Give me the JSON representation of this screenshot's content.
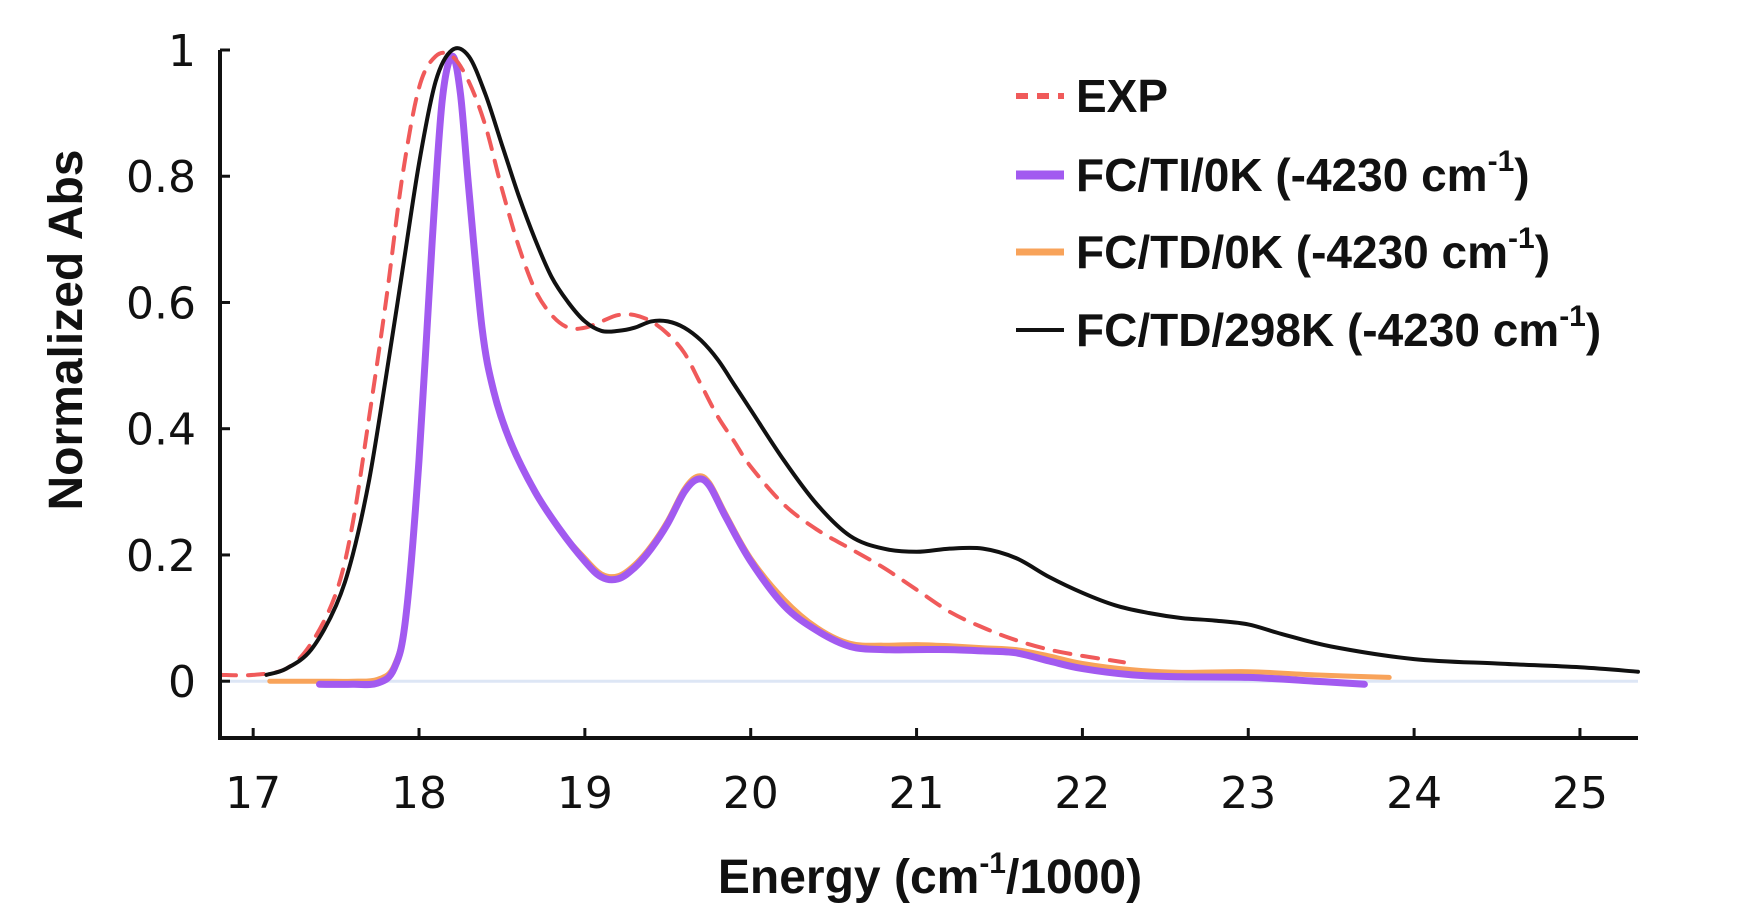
{
  "chart_data": {
    "type": "line",
    "xlabel": {
      "pre": "Energy (cm",
      "sup": "-1",
      "post": "/1000)"
    },
    "ylabel": "Normalized Abs",
    "xlim": [
      16.8,
      25.35
    ],
    "ylim": [
      -0.09,
      1.0
    ],
    "x_ticks": [
      17,
      18,
      19,
      20,
      21,
      22,
      23,
      24,
      25
    ],
    "x_tick_labels": [
      "17",
      "18",
      "19",
      "20",
      "21",
      "22",
      "23",
      "24",
      "25"
    ],
    "y_ticks": [
      0,
      0.2,
      0.4,
      0.6,
      0.8,
      1
    ],
    "y_tick_labels": [
      "0",
      "0.2",
      "0.4",
      "0.6",
      "0.8",
      "1"
    ],
    "zero_line_color": "#dde6f5",
    "legend_position": "top-right",
    "series": [
      {
        "name": "EXP",
        "legend": {
          "pre": "EXP",
          "sup": "",
          "post": ""
        },
        "color": "#f05a5a",
        "style": "dashed",
        "x": [
          16.8,
          17.0,
          17.2,
          17.35,
          17.5,
          17.6,
          17.7,
          17.8,
          17.9,
          18.0,
          18.1,
          18.2,
          18.3,
          18.4,
          18.5,
          18.6,
          18.7,
          18.8,
          18.9,
          19.0,
          19.1,
          19.2,
          19.3,
          19.4,
          19.5,
          19.6,
          19.7,
          19.8,
          19.9,
          20.0,
          20.2,
          20.4,
          20.6,
          20.8,
          21.0,
          21.2,
          21.4,
          21.6,
          21.8,
          22.0,
          22.2,
          22.25
        ],
        "y": [
          0.01,
          0.01,
          0.02,
          0.06,
          0.14,
          0.25,
          0.42,
          0.6,
          0.8,
          0.94,
          0.99,
          0.99,
          0.95,
          0.88,
          0.78,
          0.69,
          0.62,
          0.58,
          0.56,
          0.56,
          0.57,
          0.58,
          0.58,
          0.57,
          0.55,
          0.52,
          0.47,
          0.42,
          0.38,
          0.34,
          0.28,
          0.24,
          0.21,
          0.18,
          0.145,
          0.11,
          0.085,
          0.065,
          0.05,
          0.04,
          0.032,
          0.03
        ]
      },
      {
        "name": "FC/TI/0K (-4230 cm-1)",
        "legend": {
          "pre": "FC/TI/0K (-4230 cm",
          "sup": "-1",
          "post": ")"
        },
        "color": "#a25af0",
        "style": "solid",
        "x": [
          17.4,
          17.6,
          17.75,
          17.85,
          17.92,
          18.0,
          18.08,
          18.14,
          18.2,
          18.25,
          18.3,
          18.38,
          18.45,
          18.55,
          18.7,
          18.85,
          19.0,
          19.1,
          19.2,
          19.3,
          19.4,
          19.5,
          19.6,
          19.68,
          19.75,
          19.85,
          20.0,
          20.2,
          20.4,
          20.6,
          20.8,
          21.0,
          21.2,
          21.4,
          21.6,
          21.8,
          22.0,
          22.3,
          22.6,
          23.0,
          23.4,
          23.7
        ],
        "y": [
          -0.005,
          -0.005,
          -0.003,
          0.02,
          0.1,
          0.35,
          0.7,
          0.92,
          0.99,
          0.93,
          0.78,
          0.56,
          0.46,
          0.38,
          0.3,
          0.24,
          0.19,
          0.165,
          0.162,
          0.18,
          0.21,
          0.25,
          0.3,
          0.32,
          0.31,
          0.26,
          0.19,
          0.12,
          0.08,
          0.055,
          0.05,
          0.05,
          0.05,
          0.048,
          0.045,
          0.032,
          0.02,
          0.01,
          0.007,
          0.006,
          0.0,
          -0.005
        ]
      },
      {
        "name": "FC/TD/0K (-4230 cm-1)",
        "legend": {
          "pre": "FC/TD/0K (-4230 cm",
          "sup": "-1",
          "post": ")"
        },
        "color": "#f8a35a",
        "style": "solid",
        "x": [
          17.1,
          17.4,
          17.6,
          17.75,
          17.85,
          17.92,
          18.0,
          18.08,
          18.14,
          18.2,
          18.25,
          18.3,
          18.38,
          18.45,
          18.55,
          18.7,
          18.85,
          19.0,
          19.1,
          19.2,
          19.3,
          19.4,
          19.5,
          19.6,
          19.68,
          19.75,
          19.85,
          20.0,
          20.2,
          20.4,
          20.6,
          20.8,
          21.0,
          21.2,
          21.4,
          21.6,
          21.8,
          22.0,
          22.3,
          22.6,
          23.0,
          23.4,
          23.85
        ],
        "y": [
          0.0,
          0.0,
          0.0,
          0.003,
          0.025,
          0.105,
          0.355,
          0.7,
          0.92,
          0.99,
          0.93,
          0.78,
          0.56,
          0.46,
          0.38,
          0.3,
          0.24,
          0.195,
          0.17,
          0.167,
          0.185,
          0.215,
          0.255,
          0.305,
          0.325,
          0.315,
          0.265,
          0.195,
          0.13,
          0.085,
          0.06,
          0.057,
          0.058,
          0.056,
          0.053,
          0.05,
          0.04,
          0.028,
          0.018,
          0.014,
          0.015,
          0.01,
          0.006
        ]
      },
      {
        "name": "FC/TD/298K (-4230 cm-1)",
        "legend": {
          "pre": "FC/TD/298K (-4230 cm",
          "sup": "-1",
          "post": ")"
        },
        "color": "#111111",
        "style": "solid",
        "x": [
          17.08,
          17.2,
          17.35,
          17.5,
          17.6,
          17.7,
          17.8,
          17.9,
          18.0,
          18.1,
          18.2,
          18.3,
          18.4,
          18.5,
          18.6,
          18.7,
          18.8,
          18.9,
          19.0,
          19.1,
          19.2,
          19.3,
          19.4,
          19.5,
          19.6,
          19.7,
          19.8,
          19.9,
          20.0,
          20.2,
          20.4,
          20.6,
          20.8,
          21.0,
          21.2,
          21.4,
          21.6,
          21.8,
          22.0,
          22.2,
          22.4,
          22.6,
          22.8,
          23.0,
          23.2,
          23.5,
          24.0,
          24.5,
          25.0,
          25.35
        ],
        "y": [
          0.01,
          0.02,
          0.05,
          0.12,
          0.2,
          0.32,
          0.48,
          0.65,
          0.82,
          0.95,
          1.0,
          0.99,
          0.93,
          0.85,
          0.77,
          0.7,
          0.64,
          0.6,
          0.57,
          0.555,
          0.555,
          0.56,
          0.57,
          0.57,
          0.56,
          0.54,
          0.51,
          0.47,
          0.43,
          0.35,
          0.28,
          0.23,
          0.21,
          0.205,
          0.21,
          0.21,
          0.195,
          0.165,
          0.14,
          0.12,
          0.108,
          0.1,
          0.096,
          0.09,
          0.075,
          0.055,
          0.035,
          0.028,
          0.022,
          0.015
        ]
      }
    ]
  }
}
